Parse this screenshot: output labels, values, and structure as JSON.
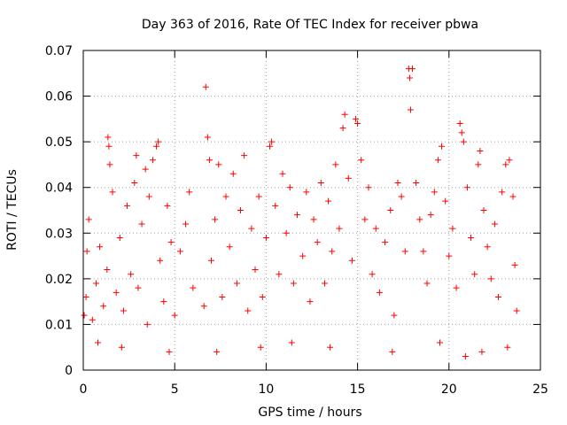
{
  "chart_data": {
    "type": "scatter",
    "title": "Day 363 of 2016, Rate Of TEC Index for receiver pbwa",
    "xlabel": "GPS time / hours",
    "ylabel": "ROTI / TECUs",
    "xlim": [
      0,
      25
    ],
    "ylim": [
      0,
      0.07
    ],
    "xticks": [
      0,
      5,
      10,
      15,
      20,
      25
    ],
    "yticks": [
      0,
      0.01,
      0.02,
      0.03,
      0.04,
      0.05,
      0.06,
      0.07
    ],
    "xtick_labels": [
      "0",
      "5",
      "10",
      "15",
      "20",
      "25"
    ],
    "ytick_labels": [
      "0",
      "0.01",
      "0.02",
      "0.03",
      "0.04",
      "0.05",
      "0.06",
      "0.07"
    ],
    "grid": true,
    "marker": "+",
    "color": "#ff0000",
    "series": [
      {
        "points": [
          [
            0.05,
            0.012
          ],
          [
            0.15,
            0.016
          ],
          [
            0.2,
            0.026
          ],
          [
            0.3,
            0.033
          ],
          [
            0.5,
            0.011
          ],
          [
            0.7,
            0.019
          ],
          [
            0.9,
            0.027
          ],
          [
            1.1,
            0.014
          ],
          [
            1.3,
            0.022
          ],
          [
            1.35,
            0.051
          ],
          [
            1.4,
            0.049
          ],
          [
            1.45,
            0.045
          ],
          [
            1.6,
            0.039
          ],
          [
            1.8,
            0.017
          ],
          [
            2.0,
            0.029
          ],
          [
            2.2,
            0.013
          ],
          [
            2.4,
            0.036
          ],
          [
            2.6,
            0.021
          ],
          [
            2.8,
            0.041
          ],
          [
            2.9,
            0.047
          ],
          [
            3.0,
            0.018
          ],
          [
            3.2,
            0.032
          ],
          [
            3.4,
            0.044
          ],
          [
            3.5,
            0.01
          ],
          [
            3.6,
            0.038
          ],
          [
            3.8,
            0.046
          ],
          [
            4.0,
            0.049
          ],
          [
            4.1,
            0.05
          ],
          [
            4.2,
            0.024
          ],
          [
            4.4,
            0.015
          ],
          [
            4.6,
            0.036
          ],
          [
            4.8,
            0.028
          ],
          [
            5.0,
            0.012
          ],
          [
            5.3,
            0.026
          ],
          [
            5.6,
            0.032
          ],
          [
            5.8,
            0.039
          ],
          [
            6.0,
            0.018
          ],
          [
            6.6,
            0.014
          ],
          [
            6.7,
            0.062
          ],
          [
            6.8,
            0.051
          ],
          [
            6.9,
            0.046
          ],
          [
            7.0,
            0.024
          ],
          [
            7.2,
            0.033
          ],
          [
            7.4,
            0.045
          ],
          [
            7.6,
            0.016
          ],
          [
            7.8,
            0.038
          ],
          [
            8.0,
            0.027
          ],
          [
            8.2,
            0.043
          ],
          [
            8.4,
            0.019
          ],
          [
            8.6,
            0.035
          ],
          [
            8.8,
            0.047
          ],
          [
            9.0,
            0.013
          ],
          [
            9.2,
            0.031
          ],
          [
            9.4,
            0.022
          ],
          [
            9.6,
            0.038
          ],
          [
            9.8,
            0.016
          ],
          [
            10.0,
            0.029
          ],
          [
            10.2,
            0.049
          ],
          [
            10.3,
            0.05
          ],
          [
            10.5,
            0.036
          ],
          [
            10.7,
            0.021
          ],
          [
            10.9,
            0.043
          ],
          [
            11.1,
            0.03
          ],
          [
            11.3,
            0.04
          ],
          [
            11.5,
            0.019
          ],
          [
            11.7,
            0.034
          ],
          [
            12.0,
            0.025
          ],
          [
            12.2,
            0.039
          ],
          [
            12.4,
            0.015
          ],
          [
            12.6,
            0.033
          ],
          [
            12.8,
            0.028
          ],
          [
            13.0,
            0.041
          ],
          [
            13.2,
            0.019
          ],
          [
            13.4,
            0.037
          ],
          [
            13.6,
            0.026
          ],
          [
            13.8,
            0.045
          ],
          [
            14.0,
            0.031
          ],
          [
            14.2,
            0.053
          ],
          [
            14.3,
            0.056
          ],
          [
            14.5,
            0.042
          ],
          [
            14.7,
            0.024
          ],
          [
            14.9,
            0.055
          ],
          [
            15.0,
            0.054
          ],
          [
            15.2,
            0.046
          ],
          [
            15.4,
            0.033
          ],
          [
            15.6,
            0.04
          ],
          [
            15.8,
            0.021
          ],
          [
            16.0,
            0.031
          ],
          [
            16.2,
            0.017
          ],
          [
            16.5,
            0.028
          ],
          [
            16.8,
            0.035
          ],
          [
            17.0,
            0.012
          ],
          [
            17.2,
            0.041
          ],
          [
            17.4,
            0.038
          ],
          [
            17.6,
            0.026
          ],
          [
            17.8,
            0.066
          ],
          [
            17.85,
            0.064
          ],
          [
            17.9,
            0.057
          ],
          [
            18.0,
            0.066
          ],
          [
            18.2,
            0.041
          ],
          [
            18.4,
            0.033
          ],
          [
            18.6,
            0.026
          ],
          [
            18.8,
            0.019
          ],
          [
            19.0,
            0.034
          ],
          [
            19.2,
            0.039
          ],
          [
            19.4,
            0.046
          ],
          [
            19.6,
            0.049
          ],
          [
            19.8,
            0.037
          ],
          [
            20.0,
            0.025
          ],
          [
            20.2,
            0.031
          ],
          [
            20.4,
            0.018
          ],
          [
            20.6,
            0.054
          ],
          [
            20.7,
            0.052
          ],
          [
            20.8,
            0.05
          ],
          [
            21.0,
            0.04
          ],
          [
            21.2,
            0.029
          ],
          [
            21.4,
            0.021
          ],
          [
            21.6,
            0.045
          ],
          [
            21.7,
            0.048
          ],
          [
            21.9,
            0.035
          ],
          [
            22.1,
            0.027
          ],
          [
            22.3,
            0.02
          ],
          [
            22.5,
            0.032
          ],
          [
            22.7,
            0.016
          ],
          [
            22.9,
            0.039
          ],
          [
            23.1,
            0.045
          ],
          [
            23.3,
            0.046
          ],
          [
            23.5,
            0.038
          ],
          [
            23.6,
            0.023
          ],
          [
            23.7,
            0.013
          ],
          [
            0.8,
            0.006
          ],
          [
            2.1,
            0.005
          ],
          [
            4.7,
            0.004
          ],
          [
            7.3,
            0.004
          ],
          [
            9.7,
            0.005
          ],
          [
            11.4,
            0.006
          ],
          [
            13.5,
            0.005
          ],
          [
            16.9,
            0.004
          ],
          [
            19.5,
            0.006
          ],
          [
            20.9,
            0.003
          ],
          [
            21.8,
            0.004
          ],
          [
            23.2,
            0.005
          ]
        ]
      }
    ]
  }
}
